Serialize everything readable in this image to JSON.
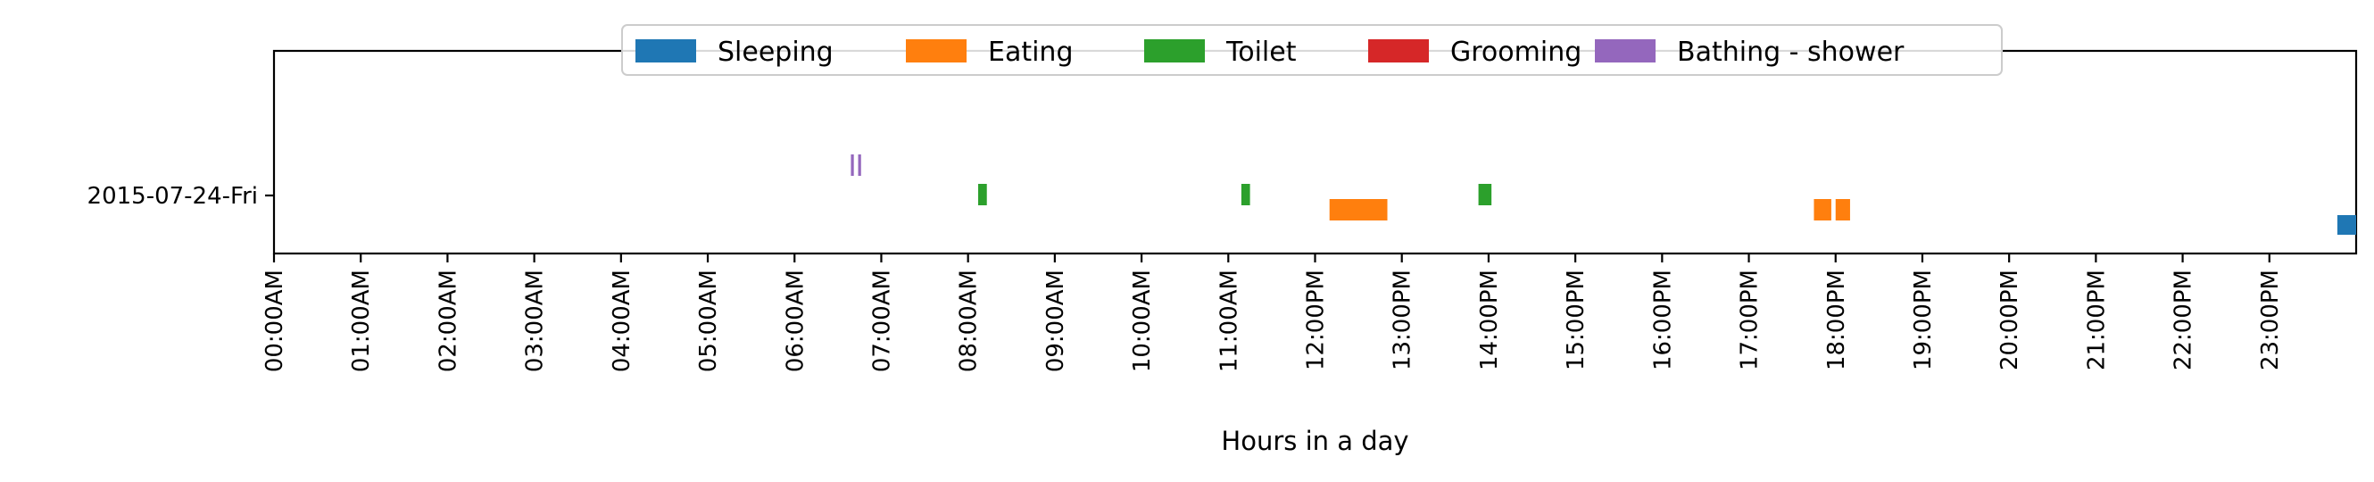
{
  "chart_data": {
    "type": "timeline",
    "title": "",
    "xlabel": "Hours in a day",
    "ylabel": "",
    "xlim_hours": [
      0,
      24
    ],
    "x_ticks": [
      "00:00AM",
      "01:00AM",
      "02:00AM",
      "03:00AM",
      "04:00AM",
      "05:00AM",
      "06:00AM",
      "07:00AM",
      "08:00AM",
      "09:00AM",
      "10:00AM",
      "11:00AM",
      "12:00PM",
      "13:00PM",
      "14:00PM",
      "15:00PM",
      "16:00PM",
      "17:00PM",
      "18:00PM",
      "19:00PM",
      "20:00PM",
      "21:00PM",
      "22:00PM",
      "23:00PM"
    ],
    "y_categories": [
      "2015-07-24-Fri"
    ],
    "legend_position": "top-center",
    "grid": false,
    "series": [
      {
        "name": "Sleeping",
        "color": "#1f77b4",
        "intervals": [
          {
            "start": "23:47",
            "end": "24:00"
          }
        ]
      },
      {
        "name": "Eating",
        "color": "#ff7f0e",
        "intervals": [
          {
            "start": "12:10",
            "end": "12:50"
          },
          {
            "start": "17:45",
            "end": "17:57"
          },
          {
            "start": "18:00",
            "end": "18:10"
          }
        ]
      },
      {
        "name": "Toilet",
        "color": "#2ca02c",
        "intervals": [
          {
            "start": "08:07",
            "end": "08:13"
          },
          {
            "start": "11:09",
            "end": "11:15"
          },
          {
            "start": "13:53",
            "end": "14:02"
          }
        ]
      },
      {
        "name": "Grooming",
        "color": "#d62728",
        "intervals": []
      },
      {
        "name": "Bathing - shower",
        "color": "#9467bd",
        "intervals": [
          {
            "start": "06:39",
            "end": "06:41"
          },
          {
            "start": "06:44",
            "end": "06:46"
          }
        ]
      }
    ]
  }
}
